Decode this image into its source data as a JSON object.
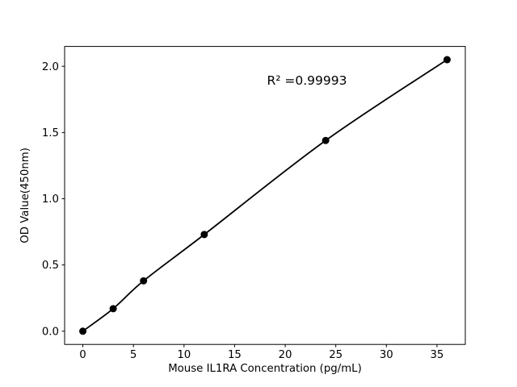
{
  "figure": {
    "background": "#ffffff"
  },
  "chart_data": {
    "type": "line",
    "title": "",
    "xlabel": "Mouse IL1RA Concentration (pg/mL)",
    "ylabel": "OD Value(450nm)",
    "annotation": "R² =0.99993",
    "x": [
      0,
      3,
      6,
      12,
      24,
      36
    ],
    "y": [
      0.0,
      0.17,
      0.38,
      0.73,
      1.44,
      2.05
    ],
    "xticks": [
      0,
      5,
      10,
      15,
      20,
      25,
      30,
      35
    ],
    "yticks": [
      0.0,
      0.5,
      1.0,
      1.5,
      2.0
    ],
    "xlim": [
      -1.8,
      37.8
    ],
    "ylim": [
      -0.1,
      2.15
    ],
    "grid": false,
    "legend": false,
    "line_color": "#000000",
    "marker": "circle",
    "marker_color": "#000000",
    "text_color": "#000000"
  }
}
